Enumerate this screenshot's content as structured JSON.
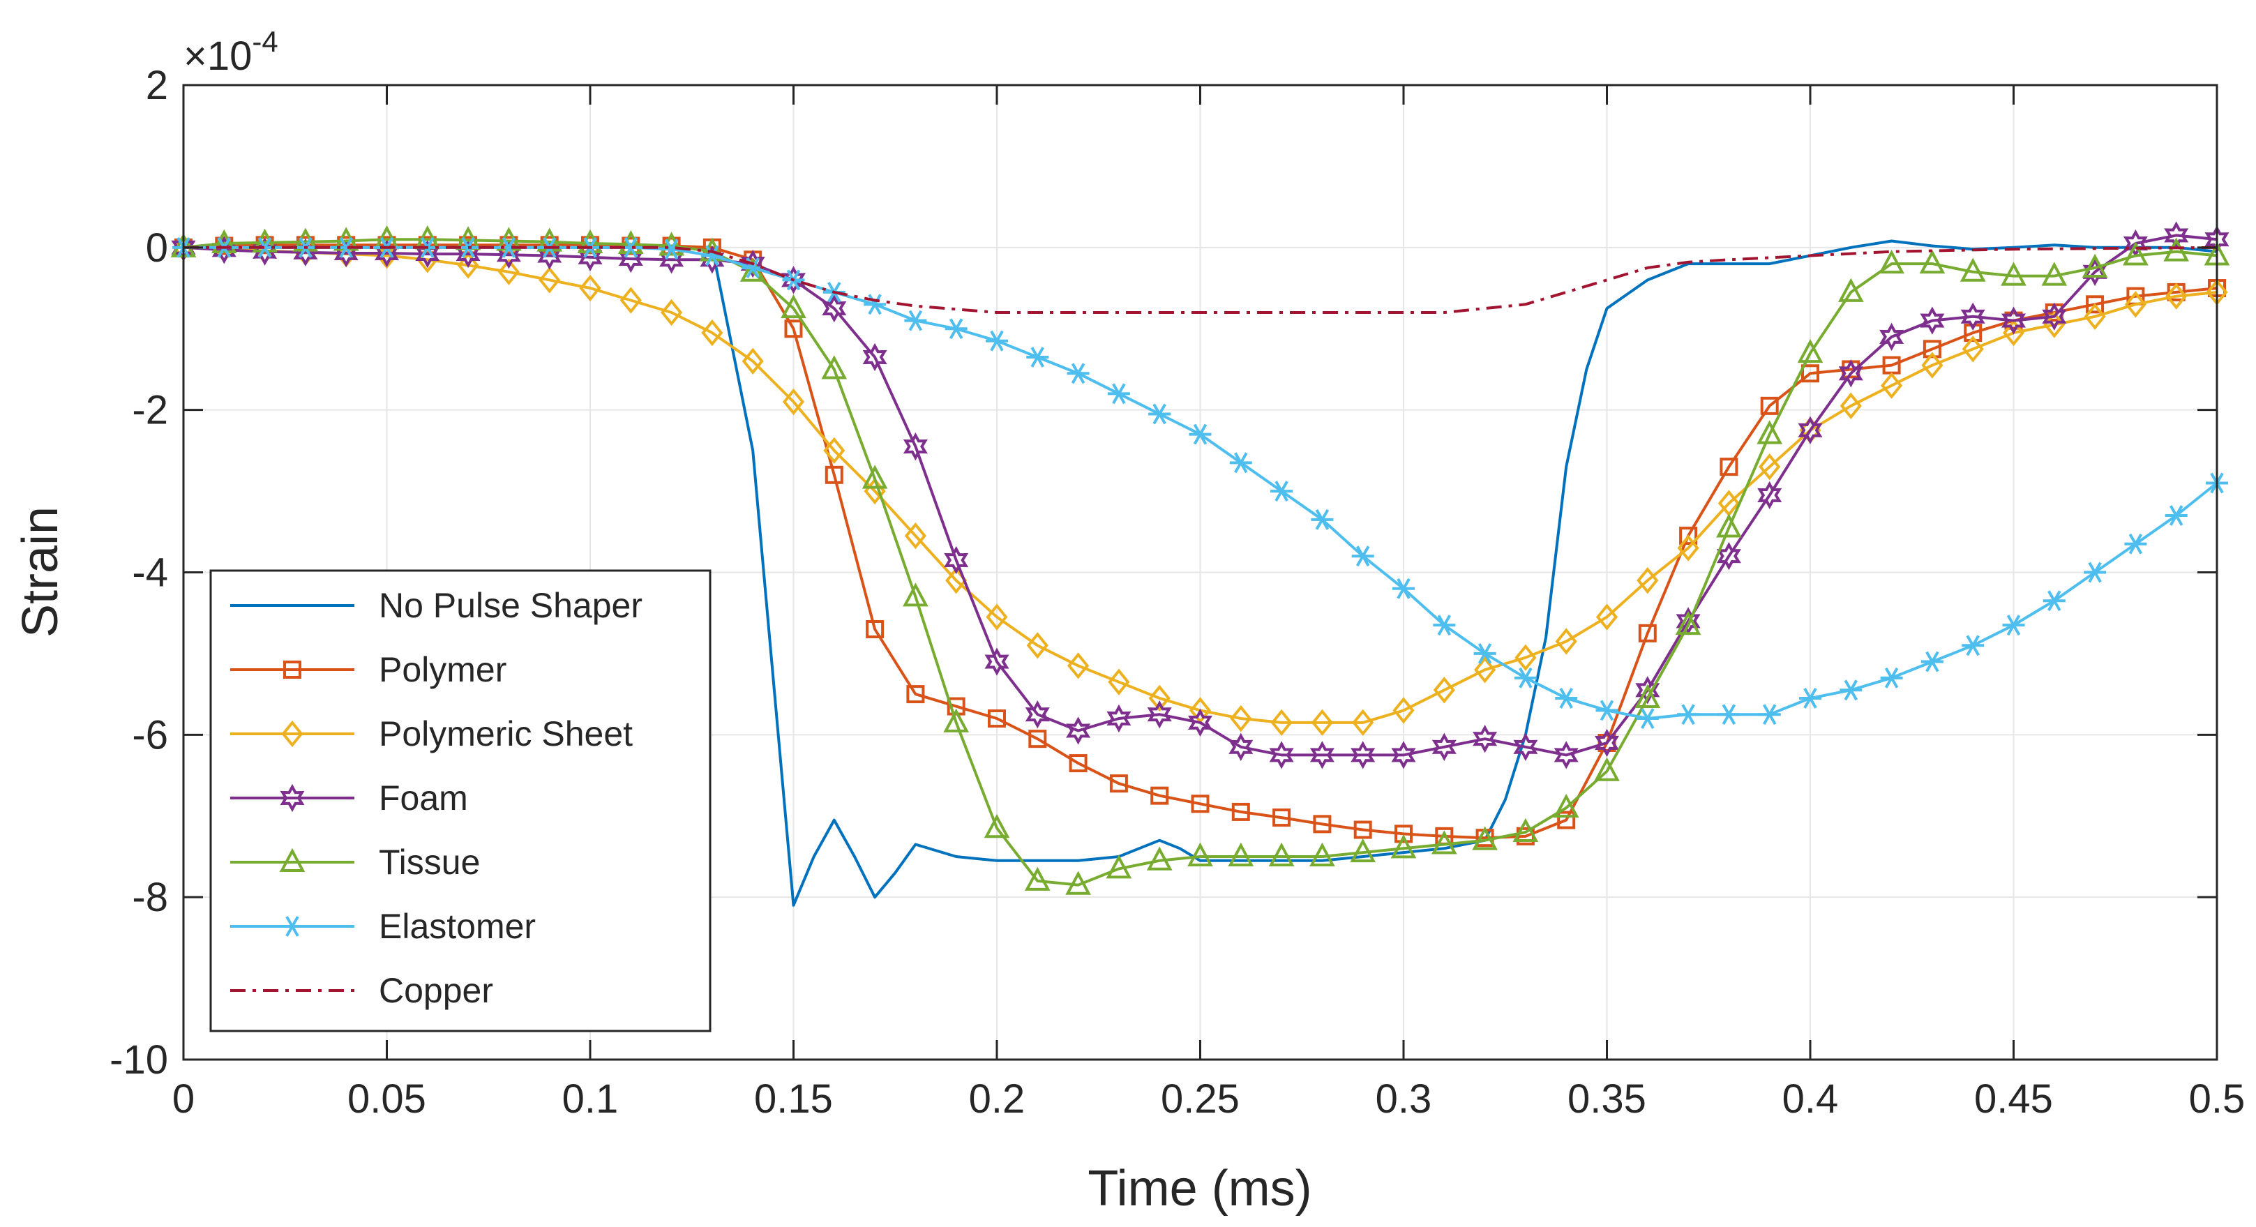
{
  "chart_data": {
    "type": "line",
    "title": "",
    "xlabel": "Time (ms)",
    "ylabel": "Strain",
    "y_multiplier": "×10",
    "y_exponent": "-4",
    "xlim": [
      0,
      0.5
    ],
    "ylim": [
      -10,
      2
    ],
    "xticks": [
      0,
      0.05,
      0.1,
      0.15,
      0.2,
      0.25,
      0.3,
      0.35,
      0.4,
      0.45,
      0.5
    ],
    "xtick_labels": [
      "0",
      "0.05",
      "0.1",
      "0.15",
      "0.2",
      "0.25",
      "0.3",
      "0.35",
      "0.4",
      "0.45",
      "0.5"
    ],
    "yticks": [
      -10,
      -8,
      -6,
      -4,
      -2,
      0,
      2
    ],
    "ytick_labels": [
      "-10",
      "-8",
      "-6",
      "-4",
      "-2",
      "0",
      "2"
    ],
    "grid": true,
    "legend_position": "bottom-left",
    "colors": {
      "no_pulse": "#0072BD",
      "polymer": "#D95319",
      "polymeric_sheet": "#EDB120",
      "foam": "#7E2F8E",
      "tissue": "#77AC30",
      "elastomer": "#4DBEEE",
      "copper": "#A2142F",
      "axis": "#262626",
      "grid": "#e6e6e6"
    },
    "series": [
      {
        "name": "No Pulse Shaper",
        "key": "no_pulse",
        "color": "#0072BD",
        "marker": "none",
        "dash": "solid",
        "x": [
          0,
          0.01,
          0.02,
          0.03,
          0.04,
          0.05,
          0.06,
          0.07,
          0.08,
          0.09,
          0.1,
          0.11,
          0.12,
          0.13,
          0.14,
          0.15,
          0.155,
          0.16,
          0.165,
          0.17,
          0.175,
          0.18,
          0.19,
          0.2,
          0.21,
          0.22,
          0.23,
          0.235,
          0.24,
          0.245,
          0.25,
          0.26,
          0.27,
          0.28,
          0.29,
          0.3,
          0.31,
          0.32,
          0.325,
          0.33,
          0.335,
          0.34,
          0.345,
          0.35,
          0.36,
          0.37,
          0.38,
          0.39,
          0.4,
          0.41,
          0.42,
          0.43,
          0.44,
          0.45,
          0.46,
          0.47,
          0.48,
          0.49,
          0.5
        ],
        "y": [
          0,
          0,
          0,
          0,
          0,
          0,
          0,
          0,
          0,
          0,
          0,
          0,
          0,
          0,
          -2.5,
          -8.1,
          -7.5,
          -7.05,
          -7.5,
          -8.0,
          -7.7,
          -7.35,
          -7.5,
          -7.55,
          -7.55,
          -7.55,
          -7.5,
          -7.4,
          -7.3,
          -7.4,
          -7.55,
          -7.55,
          -7.55,
          -7.55,
          -7.5,
          -7.45,
          -7.4,
          -7.3,
          -6.8,
          -6.0,
          -4.8,
          -2.7,
          -1.5,
          -0.75,
          -0.4,
          -0.2,
          -0.2,
          -0.2,
          -0.1,
          0,
          0.08,
          0.02,
          -0.02,
          0,
          0.03,
          0,
          0,
          0,
          -0.05
        ]
      },
      {
        "name": "Polymer",
        "key": "polymer",
        "color": "#D95319",
        "marker": "square",
        "dash": "solid",
        "x": [
          0,
          0.01,
          0.02,
          0.03,
          0.04,
          0.05,
          0.06,
          0.07,
          0.08,
          0.09,
          0.1,
          0.11,
          0.12,
          0.13,
          0.14,
          0.15,
          0.16,
          0.17,
          0.18,
          0.19,
          0.2,
          0.21,
          0.22,
          0.23,
          0.24,
          0.25,
          0.26,
          0.27,
          0.28,
          0.29,
          0.3,
          0.31,
          0.32,
          0.33,
          0.34,
          0.35,
          0.36,
          0.37,
          0.38,
          0.39,
          0.4,
          0.41,
          0.42,
          0.43,
          0.44,
          0.45,
          0.46,
          0.47,
          0.48,
          0.49,
          0.5
        ],
        "y": [
          0,
          0.02,
          0.03,
          0.03,
          0.03,
          0.03,
          0.03,
          0.03,
          0.03,
          0.03,
          0.03,
          0.02,
          0.02,
          0.0,
          -0.15,
          -1.0,
          -2.8,
          -4.7,
          -5.5,
          -5.65,
          -5.8,
          -6.05,
          -6.35,
          -6.6,
          -6.75,
          -6.85,
          -6.95,
          -7.02,
          -7.1,
          -7.17,
          -7.22,
          -7.25,
          -7.27,
          -7.25,
          -7.05,
          -6.1,
          -4.75,
          -3.55,
          -2.7,
          -1.95,
          -1.55,
          -1.5,
          -1.45,
          -1.25,
          -1.05,
          -0.9,
          -0.8,
          -0.7,
          -0.6,
          -0.55,
          -0.5
        ]
      },
      {
        "name": "Polymeric Sheet",
        "key": "polymeric_sheet",
        "color": "#EDB120",
        "marker": "diamond",
        "dash": "solid",
        "x": [
          0,
          0.01,
          0.02,
          0.03,
          0.04,
          0.05,
          0.06,
          0.07,
          0.08,
          0.09,
          0.1,
          0.11,
          0.12,
          0.13,
          0.14,
          0.15,
          0.16,
          0.17,
          0.18,
          0.19,
          0.2,
          0.21,
          0.22,
          0.23,
          0.24,
          0.25,
          0.26,
          0.27,
          0.28,
          0.29,
          0.3,
          0.31,
          0.32,
          0.33,
          0.34,
          0.35,
          0.36,
          0.37,
          0.38,
          0.39,
          0.4,
          0.41,
          0.42,
          0.43,
          0.44,
          0.45,
          0.46,
          0.47,
          0.48,
          0.49,
          0.5
        ],
        "y": [
          0,
          -0.02,
          -0.04,
          -0.06,
          -0.08,
          -0.1,
          -0.15,
          -0.22,
          -0.3,
          -0.4,
          -0.5,
          -0.65,
          -0.8,
          -1.05,
          -1.4,
          -1.9,
          -2.5,
          -3.0,
          -3.55,
          -4.1,
          -4.55,
          -4.9,
          -5.15,
          -5.35,
          -5.55,
          -5.7,
          -5.8,
          -5.85,
          -5.85,
          -5.85,
          -5.7,
          -5.45,
          -5.2,
          -5.05,
          -4.85,
          -4.55,
          -4.1,
          -3.7,
          -3.15,
          -2.7,
          -2.25,
          -1.95,
          -1.7,
          -1.45,
          -1.25,
          -1.05,
          -0.95,
          -0.85,
          -0.7,
          -0.6,
          -0.55
        ]
      },
      {
        "name": "Foam",
        "key": "foam",
        "color": "#7E2F8E",
        "marker": "star6",
        "dash": "solid",
        "x": [
          0,
          0.01,
          0.02,
          0.03,
          0.04,
          0.05,
          0.06,
          0.07,
          0.08,
          0.09,
          0.1,
          0.11,
          0.12,
          0.13,
          0.14,
          0.15,
          0.16,
          0.17,
          0.18,
          0.19,
          0.2,
          0.21,
          0.22,
          0.23,
          0.24,
          0.25,
          0.26,
          0.27,
          0.28,
          0.29,
          0.3,
          0.31,
          0.32,
          0.33,
          0.34,
          0.35,
          0.36,
          0.37,
          0.38,
          0.39,
          0.4,
          0.41,
          0.42,
          0.43,
          0.44,
          0.45,
          0.46,
          0.47,
          0.48,
          0.49,
          0.5
        ],
        "y": [
          0,
          -0.03,
          -0.05,
          -0.06,
          -0.07,
          -0.07,
          -0.08,
          -0.08,
          -0.09,
          -0.1,
          -0.12,
          -0.14,
          -0.15,
          -0.15,
          -0.2,
          -0.4,
          -0.75,
          -1.35,
          -2.45,
          -3.85,
          -5.1,
          -5.75,
          -5.95,
          -5.8,
          -5.75,
          -5.85,
          -6.15,
          -6.25,
          -6.25,
          -6.25,
          -6.25,
          -6.15,
          -6.05,
          -6.15,
          -6.25,
          -6.1,
          -5.45,
          -4.6,
          -3.8,
          -3.05,
          -2.25,
          -1.55,
          -1.1,
          -0.9,
          -0.85,
          -0.9,
          -0.85,
          -0.3,
          0.05,
          0.15,
          0.1
        ]
      },
      {
        "name": "Tissue",
        "key": "tissue",
        "color": "#77AC30",
        "marker": "triangle",
        "dash": "solid",
        "x": [
          0,
          0.01,
          0.02,
          0.03,
          0.04,
          0.05,
          0.06,
          0.07,
          0.08,
          0.09,
          0.1,
          0.11,
          0.12,
          0.13,
          0.14,
          0.15,
          0.16,
          0.17,
          0.18,
          0.19,
          0.2,
          0.21,
          0.22,
          0.23,
          0.24,
          0.25,
          0.26,
          0.27,
          0.28,
          0.29,
          0.3,
          0.31,
          0.32,
          0.33,
          0.34,
          0.35,
          0.36,
          0.37,
          0.38,
          0.39,
          0.4,
          0.41,
          0.42,
          0.43,
          0.44,
          0.45,
          0.46,
          0.47,
          0.48,
          0.49,
          0.5
        ],
        "y": [
          0,
          0.05,
          0.06,
          0.07,
          0.08,
          0.1,
          0.1,
          0.09,
          0.08,
          0.07,
          0.05,
          0.04,
          0.02,
          -0.05,
          -0.3,
          -0.75,
          -1.5,
          -2.85,
          -4.3,
          -5.85,
          -7.15,
          -7.8,
          -7.85,
          -7.65,
          -7.55,
          -7.5,
          -7.5,
          -7.5,
          -7.5,
          -7.45,
          -7.4,
          -7.35,
          -7.3,
          -7.2,
          -6.9,
          -6.45,
          -5.55,
          -4.65,
          -3.45,
          -2.3,
          -1.3,
          -0.55,
          -0.2,
          -0.2,
          -0.3,
          -0.35,
          -0.35,
          -0.25,
          -0.1,
          -0.05,
          -0.1
        ]
      },
      {
        "name": "Elastomer",
        "key": "elastomer",
        "color": "#4DBEEE",
        "marker": "asterisk",
        "dash": "solid",
        "x": [
          0,
          0.01,
          0.02,
          0.03,
          0.04,
          0.05,
          0.06,
          0.07,
          0.08,
          0.09,
          0.1,
          0.11,
          0.12,
          0.13,
          0.14,
          0.15,
          0.16,
          0.17,
          0.18,
          0.19,
          0.2,
          0.21,
          0.22,
          0.23,
          0.24,
          0.25,
          0.26,
          0.27,
          0.28,
          0.29,
          0.3,
          0.31,
          0.32,
          0.33,
          0.34,
          0.35,
          0.36,
          0.37,
          0.38,
          0.39,
          0.4,
          0.41,
          0.42,
          0.43,
          0.44,
          0.45,
          0.46,
          0.47,
          0.48,
          0.49,
          0.5
        ],
        "y": [
          0,
          0,
          0,
          0,
          0,
          0,
          0,
          0,
          0,
          0,
          0,
          0,
          -0.02,
          -0.1,
          -0.25,
          -0.4,
          -0.55,
          -0.7,
          -0.9,
          -1.0,
          -1.15,
          -1.35,
          -1.55,
          -1.8,
          -2.05,
          -2.3,
          -2.65,
          -3.0,
          -3.35,
          -3.8,
          -4.2,
          -4.65,
          -5.0,
          -5.3,
          -5.55,
          -5.7,
          -5.8,
          -5.75,
          -5.75,
          -5.75,
          -5.55,
          -5.45,
          -5.3,
          -5.1,
          -4.9,
          -4.65,
          -4.35,
          -4.0,
          -3.65,
          -3.3,
          -2.9
        ]
      },
      {
        "name": "Copper",
        "key": "copper",
        "color": "#A2142F",
        "marker": "none",
        "dash": "dashdot",
        "x": [
          0,
          0.05,
          0.1,
          0.12,
          0.13,
          0.14,
          0.15,
          0.16,
          0.17,
          0.18,
          0.19,
          0.2,
          0.25,
          0.3,
          0.31,
          0.32,
          0.33,
          0.34,
          0.35,
          0.36,
          0.37,
          0.38,
          0.4,
          0.42,
          0.45,
          0.5
        ],
        "y": [
          0,
          0,
          0,
          0,
          -0.05,
          -0.2,
          -0.4,
          -0.55,
          -0.65,
          -0.72,
          -0.76,
          -0.8,
          -0.8,
          -0.8,
          -0.8,
          -0.75,
          -0.7,
          -0.55,
          -0.4,
          -0.25,
          -0.18,
          -0.15,
          -0.1,
          -0.05,
          -0.02,
          0
        ]
      }
    ]
  }
}
